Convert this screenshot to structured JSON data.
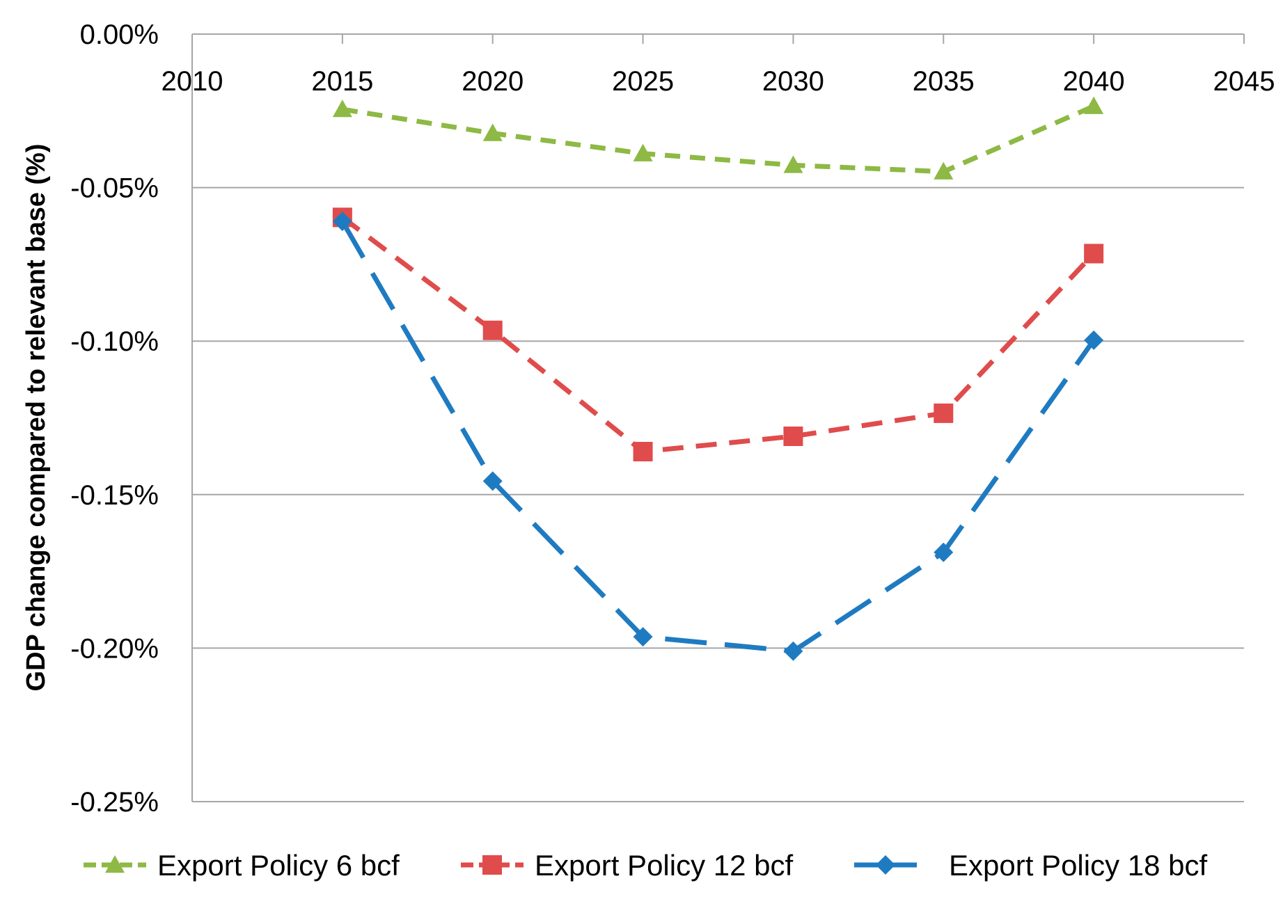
{
  "chart_data": {
    "type": "line",
    "title": "",
    "xlabel": "",
    "ylabel": "GDP change compared to relevant base (%)",
    "xlim": [
      2010,
      2045
    ],
    "ylim": [
      -0.25,
      0.0
    ],
    "x_ticks": [
      "2010",
      "2015",
      "2020",
      "2025",
      "2030",
      "2035",
      "2040",
      "2045"
    ],
    "y_ticks": [
      "0.00%",
      "-0.05%",
      "-0.10%",
      "-0.15%",
      "-0.20%",
      "-0.25%"
    ],
    "x": [
      2015,
      2020,
      2025,
      2030,
      2035,
      2040
    ],
    "grid": "horizontal",
    "legend_position": "bottom",
    "series": [
      {
        "name": "Export Policy 6 bcf",
        "color": "#8DB944",
        "marker": "triangle",
        "dash": "short",
        "values": [
          -0.0245,
          -0.0323,
          -0.0389,
          -0.0427,
          -0.0448,
          -0.0235
        ]
      },
      {
        "name": "Export Policy 12 bcf",
        "color": "#E04B4B",
        "marker": "square",
        "dash": "medium",
        "values": [
          -0.0597,
          -0.0965,
          -0.136,
          -0.131,
          -0.1235,
          -0.0715
        ]
      },
      {
        "name": "Export Policy 18 bcf",
        "color": "#1F7BC1",
        "marker": "diamond",
        "dash": "long",
        "values": [
          -0.061,
          -0.1456,
          -0.1963,
          -0.201,
          -0.1688,
          -0.0997
        ]
      }
    ]
  }
}
